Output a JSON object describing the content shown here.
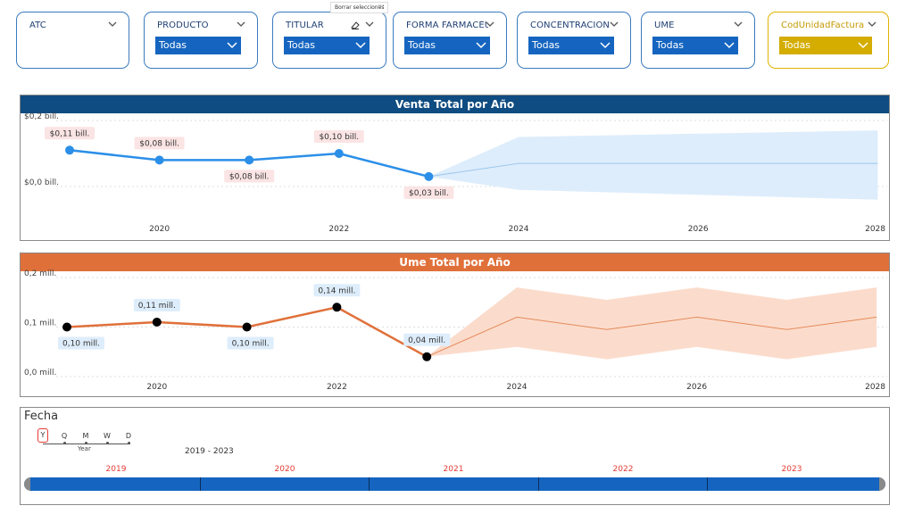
{
  "slicers": [
    {
      "title": "ATC",
      "value": null
    },
    {
      "title": "PRODUCTO",
      "value": "Todas"
    },
    {
      "title": "TITULAR",
      "value": "Todas"
    },
    {
      "title": "FORMA FARMACÉU...",
      "value": "Todas"
    },
    {
      "title": "CONCENTRACION",
      "value": "Todas"
    },
    {
      "title": "UME",
      "value": "Todas"
    },
    {
      "title": "CodUnidadFactura",
      "value": "Todas"
    }
  ],
  "tooltip": "Borrar selecciones",
  "more_icon": "ellipsis-icon",
  "colors": {
    "accent_blue": "#1565c0",
    "venta_header": "#0f4c81",
    "ume_header": "#e0703a",
    "gold": "#d4ad00",
    "venta_line": "#2b8fe8",
    "ume_line": "#e0703a"
  },
  "chart_data": [
    {
      "type": "line",
      "title": "Venta Total por Año",
      "x": [
        2019,
        2020,
        2021,
        2022,
        2023
      ],
      "values": [
        0.11,
        0.08,
        0.08,
        0.1,
        0.03
      ],
      "data_labels": [
        "$0,11 bill.",
        "$0,08 bill.",
        "$0,08 bill.",
        "$0,10 bill.",
        "$0,03 bill."
      ],
      "forecast": {
        "x": [
          2023,
          2024,
          2028
        ],
        "values": [
          0.03,
          0.07,
          0.07
        ],
        "upper": [
          0.03,
          0.15,
          0.17
        ],
        "lower": [
          0.03,
          -0.01,
          -0.04
        ]
      },
      "xticks": [
        "2020",
        "2022",
        "2024",
        "2026",
        "2028"
      ],
      "yticks": [
        "$0,2 bill.",
        "$0,0 bill."
      ],
      "ylim": [
        0.0,
        0.2
      ],
      "grid": true
    },
    {
      "type": "line",
      "title": "Ume Total por Año",
      "x": [
        2019,
        2020,
        2021,
        2022,
        2023
      ],
      "values": [
        0.1,
        0.11,
        0.1,
        0.14,
        0.04
      ],
      "data_labels": [
        "0,10 mill.",
        "0,11 mill.",
        "0,10 mill.",
        "0,14 mill.",
        "0,04 mill."
      ],
      "forecast": {
        "x": [
          2023,
          2024,
          2025,
          2026,
          2027,
          2028
        ],
        "values": [
          0.04,
          0.12,
          0.095,
          0.12,
          0.095,
          0.12
        ],
        "upper": [
          0.04,
          0.18,
          0.155,
          0.18,
          0.155,
          0.18
        ],
        "lower": [
          0.04,
          0.06,
          0.035,
          0.06,
          0.035,
          0.06
        ]
      },
      "xticks": [
        "2020",
        "2022",
        "2024",
        "2026",
        "2028"
      ],
      "yticks": [
        "0,2 mill.",
        "0,1 mill.",
        "0,0 mill."
      ],
      "ylim": [
        0.0,
        0.2
      ],
      "grid": true
    }
  ],
  "fecha": {
    "title": "Fecha",
    "granularity": [
      "Y",
      "Q",
      "M",
      "W",
      "D"
    ],
    "granularity_label": "Year",
    "range_text": "2019 - 2023",
    "years": [
      "2019",
      "2020",
      "2021",
      "2022",
      "2023"
    ]
  }
}
